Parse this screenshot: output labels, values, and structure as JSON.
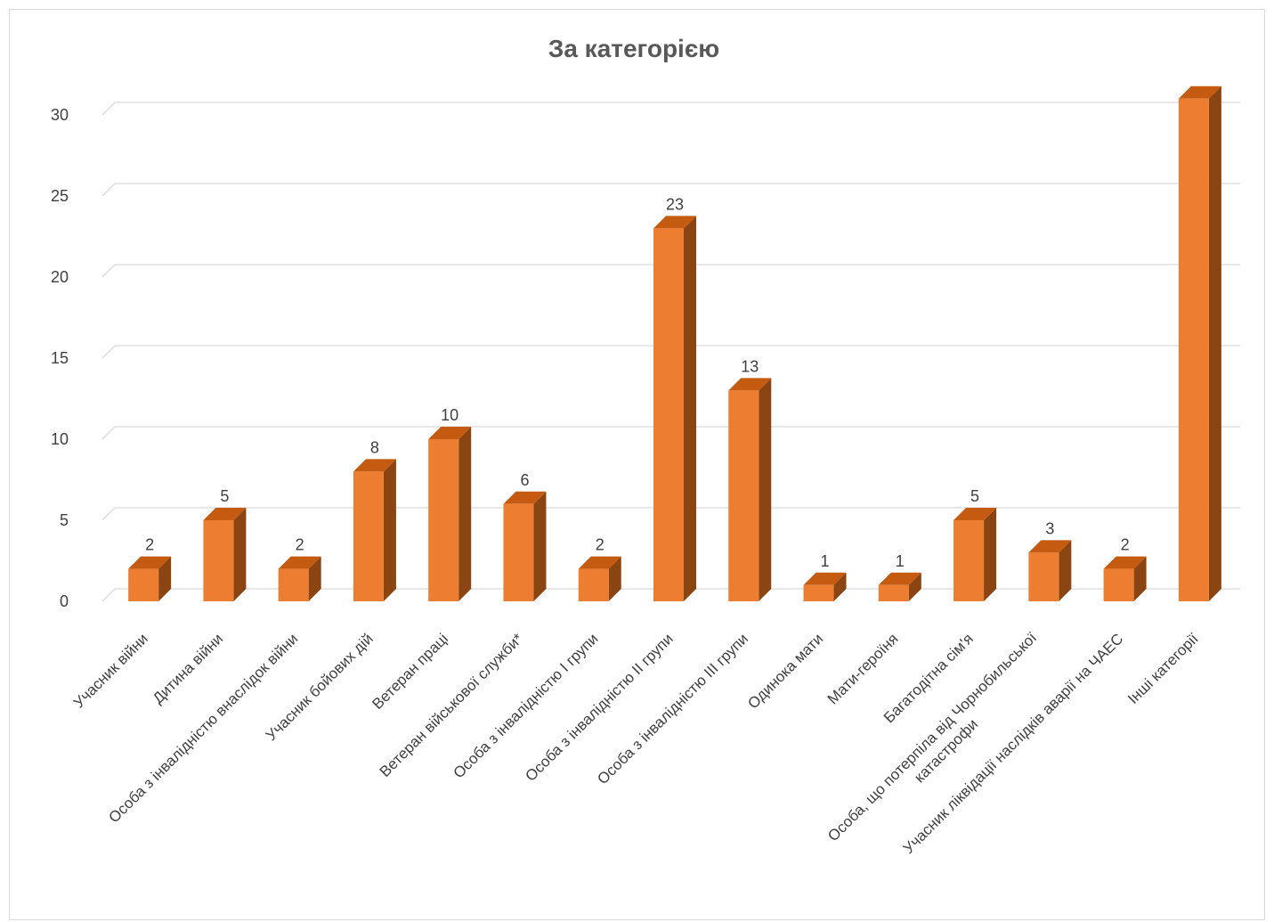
{
  "chart_data": {
    "type": "bar",
    "style": "3d-column",
    "title": "За категорією",
    "xlabel": "",
    "ylabel": "",
    "ylim": [
      0,
      30
    ],
    "yticks": [
      0,
      5,
      10,
      15,
      20,
      25,
      30
    ],
    "grid": true,
    "legend": "none",
    "categories": [
      "Учасник війни",
      "Дитина війни",
      "Особа з інвалідністю внаслідок війни",
      "Учасник бойових дій",
      "Ветеран праці",
      "Ветеран військової служби*",
      "Особа з інвалідністю І групи",
      "Особа з інвалідністю ІІ групи",
      "Особа з інвалідністю ІІІ групи",
      "Одинока мати",
      "Мати-героїня",
      "Багатодітна сім'я",
      "Особа, що потерпіла від Чорнобильської катастрофи",
      "Учасник ліквідації наслідків аварії на ЧАЕС",
      "Інші категорії"
    ],
    "category_lines": [
      [
        "Учасник війни"
      ],
      [
        "Дитина війни"
      ],
      [
        "Особа з інвалідністю внаслідок війни"
      ],
      [
        "Учасник бойових дій"
      ],
      [
        "Ветеран праці"
      ],
      [
        "Ветеран військової служби*"
      ],
      [
        "Особа з інвалідністю І групи"
      ],
      [
        "Особа з інвалідністю ІІ групи"
      ],
      [
        "Особа з інвалідністю ІІІ групи"
      ],
      [
        "Одинока мати"
      ],
      [
        "Мати-героїня"
      ],
      [
        "Багатодітна сім'я"
      ],
      [
        "Особа, що потерпіла від Чорнобильської",
        "катастрофи"
      ],
      [
        "Учасник ліквідації наслідків аварії на ЧАЕС"
      ],
      [
        "Інші категорії"
      ]
    ],
    "values": [
      2,
      5,
      2,
      8,
      10,
      6,
      2,
      23,
      13,
      1,
      1,
      5,
      3,
      2,
      31
    ],
    "data_labels": [
      "2",
      "5",
      "2",
      "8",
      "10",
      "6",
      "2",
      "23",
      "13",
      "1",
      "1",
      "5",
      "3",
      "2",
      ""
    ],
    "colors": {
      "front": "#ED7D31",
      "side": "#8B4513",
      "top": "#C55A11",
      "grid": "#d9d9d9"
    }
  }
}
